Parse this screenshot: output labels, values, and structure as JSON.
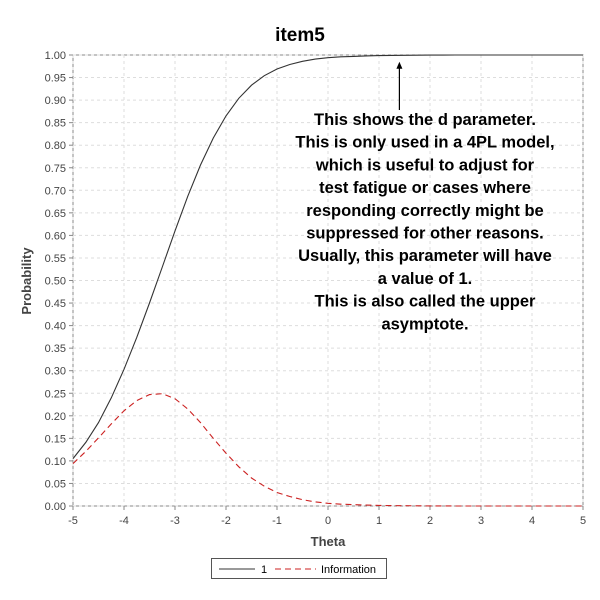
{
  "chart_data": {
    "type": "line",
    "title": "item5",
    "xlabel": "Theta",
    "ylabel": "Probability",
    "xlim": [
      -5,
      5
    ],
    "ylim": [
      0,
      1
    ],
    "x_ticks": [
      -5,
      -4,
      -3,
      -2,
      -1,
      0,
      1,
      2,
      3,
      4,
      5
    ],
    "y_ticks": [
      "0.00",
      "0.05",
      "0.10",
      "0.15",
      "0.20",
      "0.25",
      "0.30",
      "0.35",
      "0.40",
      "0.45",
      "0.50",
      "0.55",
      "0.60",
      "0.65",
      "0.70",
      "0.75",
      "0.80",
      "0.85",
      "0.90",
      "0.95",
      "1.00"
    ],
    "grid": true,
    "legend_position": "bottom",
    "series": [
      {
        "name": "1",
        "color": "#333333",
        "style": "solid",
        "x": [
          -5,
          -4.75,
          -4.5,
          -4.25,
          -4,
          -3.75,
          -3.5,
          -3.25,
          -3,
          -2.75,
          -2.5,
          -2.25,
          -2,
          -1.75,
          -1.5,
          -1.25,
          -1,
          -0.75,
          -0.5,
          -0.25,
          0,
          0.25,
          0.5,
          0.75,
          1,
          1.25,
          1.5,
          1.75,
          2,
          2.25,
          2.5,
          2.75,
          3,
          3.25,
          3.5,
          3.75,
          4,
          4.25,
          4.5,
          4.75,
          5
        ],
        "y": [
          0.105,
          0.141,
          0.185,
          0.24,
          0.303,
          0.374,
          0.45,
          0.53,
          0.61,
          0.687,
          0.756,
          0.816,
          0.865,
          0.904,
          0.933,
          0.954,
          0.969,
          0.979,
          0.986,
          0.991,
          0.994,
          0.996,
          0.997,
          0.998,
          0.9986,
          0.9991,
          0.9994,
          0.9996,
          0.9997,
          0.9998,
          0.9999,
          0.9999,
          1.0,
          1.0,
          1.0,
          1.0,
          1.0,
          1.0,
          1.0,
          1.0,
          1.0
        ]
      },
      {
        "name": "Information",
        "color": "#cc2222",
        "style": "dashed",
        "x": [
          -5,
          -4.75,
          -4.5,
          -4.25,
          -4,
          -3.75,
          -3.5,
          -3.25,
          -3,
          -2.75,
          -2.5,
          -2.25,
          -2,
          -1.75,
          -1.5,
          -1.25,
          -1,
          -0.75,
          -0.5,
          -0.25,
          0,
          0.25,
          0.5,
          0.75,
          1,
          1.25,
          1.5,
          1.75,
          2,
          2.25,
          2.5,
          2.75,
          3,
          3.25,
          3.5,
          3.75,
          4,
          4.25,
          4.5,
          4.75,
          5
        ],
        "y": [
          0.094,
          0.121,
          0.151,
          0.182,
          0.211,
          0.234,
          0.247,
          0.249,
          0.238,
          0.215,
          0.185,
          0.15,
          0.117,
          0.087,
          0.062,
          0.044,
          0.03,
          0.021,
          0.014,
          0.009,
          0.006,
          0.004,
          0.003,
          0.002,
          0.0014,
          0.0009,
          0.0006,
          0.0004,
          0.0003,
          0.0002,
          0.0001,
          0.0001,
          0.0001,
          0.0,
          0.0,
          0.0,
          0.0,
          0.0,
          0.0,
          0.0,
          0.0
        ]
      }
    ],
    "annotation": {
      "lines": [
        "This shows the d parameter.",
        "This is only used in a 4PL model,",
        "which is useful to adjust for",
        "test fatigue or cases where",
        "responding correctly might be",
        "suppressed for other reasons.",
        "Usually, this parameter will have",
        "a value of 1.",
        "This is also called the upper",
        "asymptote."
      ],
      "arrow_tip": [
        1.4,
        0.985
      ]
    }
  }
}
